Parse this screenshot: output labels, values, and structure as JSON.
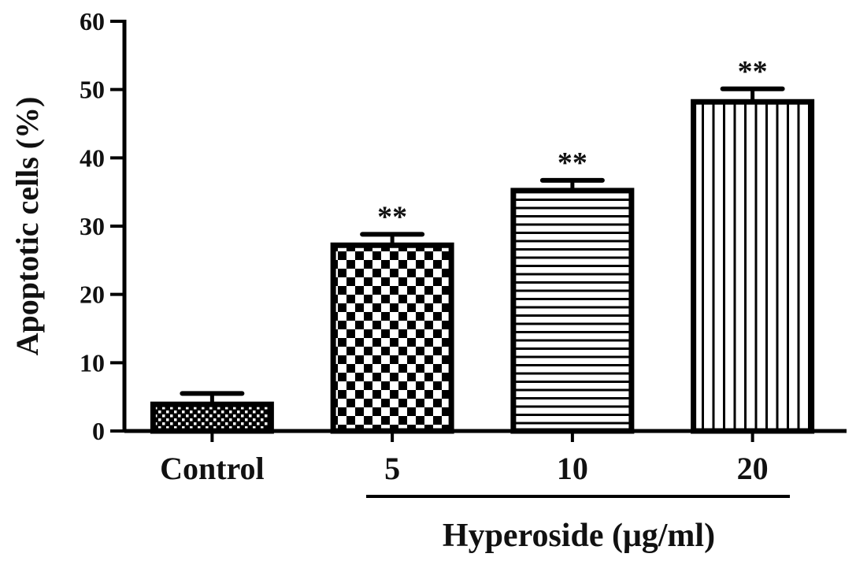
{
  "chart_data": {
    "type": "bar",
    "ylabel": "Apoptotic cells (%)",
    "xlabel": "Hyperoside (μg/ml)",
    "categories": [
      "Control",
      "5",
      "10",
      "20"
    ],
    "values": [
      3.9,
      27.2,
      35.2,
      48.2
    ],
    "errors": [
      1.6,
      1.6,
      1.5,
      1.9
    ],
    "annotations": [
      "",
      "**",
      "**",
      "**"
    ],
    "fill_patterns": [
      "fine-checker",
      "checker",
      "horizontal-lines",
      "vertical-lines"
    ],
    "ylim": [
      0,
      60
    ],
    "yticks": [
      0,
      10,
      20,
      30,
      40,
      50,
      60
    ],
    "grid": false,
    "bar_color": "#000000"
  }
}
